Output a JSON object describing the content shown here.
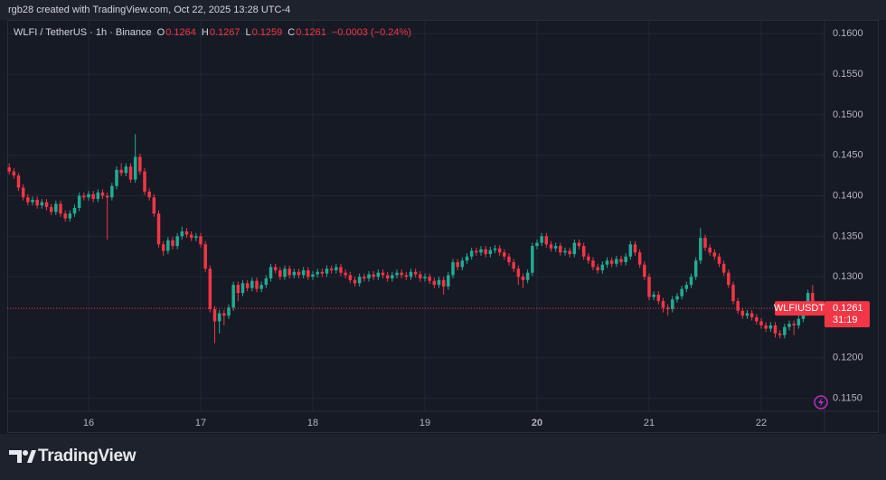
{
  "header": "rgb28 created with TradingView.com, Oct 22, 2025 13:28 UTC-4",
  "brand": "TradingView",
  "chart_data": {
    "type": "candlestick",
    "symbol": "WLFI / TetherUS · 1h · Binance",
    "ohlc_labels": [
      "O",
      "H",
      "L",
      "C"
    ],
    "change": "−0.0003 (−0.24%)",
    "price_label": "WLFIUSDT",
    "countdown": "31:19",
    "up_color": "#22ab94",
    "down_color": "#f23645",
    "grid": true,
    "xlim": [
      -0.42,
      174.55
    ],
    "xticks": [
      {
        "value": 17,
        "label": "16"
      },
      {
        "value": 41,
        "label": "17"
      },
      {
        "value": 65,
        "label": "18"
      },
      {
        "value": 89,
        "label": "19"
      },
      {
        "value": 113,
        "label": "20"
      },
      {
        "value": 137,
        "label": "21"
      },
      {
        "value": 161,
        "label": "22"
      }
    ],
    "ylim": [
      0.1134,
      0.1617
    ],
    "yticks": [
      {
        "value": 0.115,
        "label": "0.1150"
      },
      {
        "value": 0.12,
        "label": "0.1200"
      },
      {
        "value": 0.13,
        "label": "0.1300"
      },
      {
        "value": 0.135,
        "label": "0.1350"
      },
      {
        "value": 0.14,
        "label": "0.1400"
      },
      {
        "value": 0.145,
        "label": "0.1450"
      },
      {
        "value": 0.15,
        "label": "0.1500"
      },
      {
        "value": 0.155,
        "label": "0.1550"
      },
      {
        "value": 0.16,
        "label": "0.1600"
      }
    ],
    "series": [
      {
        "name": "WLFIUSDT",
        "open": [
          0.1435,
          0.143,
          0.1425,
          0.141,
          0.1398,
          0.1392,
          0.1395,
          0.1388,
          0.1392,
          0.1386,
          0.138,
          0.139,
          0.1378,
          0.1372,
          0.1378,
          0.1385,
          0.14,
          0.1398,
          0.1402,
          0.1396,
          0.1404,
          0.14,
          0.1398,
          0.1412,
          0.1432,
          0.1428,
          0.1436,
          0.142,
          0.1448,
          0.143,
          0.1405,
          0.1398,
          0.1378,
          0.134,
          0.1332,
          0.1345,
          0.1338,
          0.135,
          0.1356,
          0.1352,
          0.1348,
          0.135,
          0.134,
          0.131,
          0.126,
          0.1245,
          0.1255,
          0.1252,
          0.1262,
          0.129,
          0.128,
          0.1292,
          0.1286,
          0.1295,
          0.1285,
          0.129,
          0.1298,
          0.1312,
          0.1308,
          0.13,
          0.131,
          0.1302,
          0.1306,
          0.1302,
          0.1308,
          0.13,
          0.1303,
          0.1306,
          0.1304,
          0.131,
          0.1308,
          0.1312,
          0.1305,
          0.1302,
          0.1296,
          0.1292,
          0.13,
          0.1298,
          0.1303,
          0.13,
          0.1305,
          0.1302,
          0.1298,
          0.1302,
          0.1305,
          0.1302,
          0.13,
          0.1306,
          0.1303,
          0.1298,
          0.13,
          0.1295,
          0.129,
          0.1296,
          0.1288,
          0.1302,
          0.1318,
          0.1312,
          0.132,
          0.1325,
          0.1332,
          0.133,
          0.1334,
          0.1328,
          0.1333,
          0.1335,
          0.133,
          0.1325,
          0.1318,
          0.131,
          0.13,
          0.1296,
          0.1305,
          0.1338,
          0.1342,
          0.135,
          0.134,
          0.1335,
          0.1338,
          0.133,
          0.1332,
          0.1328,
          0.1342,
          0.1338,
          0.1325,
          0.132,
          0.1312,
          0.1308,
          0.1315,
          0.132,
          0.1316,
          0.1322,
          0.1318,
          0.1325,
          0.134,
          0.133,
          0.1315,
          0.13,
          0.1275,
          0.1278,
          0.127,
          0.1262,
          0.126,
          0.1272,
          0.1276,
          0.1285,
          0.129,
          0.13,
          0.132,
          0.1348,
          0.1336,
          0.133,
          0.1325,
          0.1316,
          0.1305,
          0.129,
          0.127,
          0.1258,
          0.1252,
          0.1255,
          0.125,
          0.1245,
          0.124,
          0.1236,
          0.124,
          0.123,
          0.1228,
          0.1238,
          0.1242,
          0.124,
          0.1248,
          0.1256,
          0.128,
          0.1264
        ],
        "high": [
          0.144,
          0.1434,
          0.1428,
          0.1414,
          0.1402,
          0.1399,
          0.1399,
          0.1396,
          0.1396,
          0.139,
          0.1394,
          0.1394,
          0.1382,
          0.1382,
          0.1389,
          0.1404,
          0.1404,
          0.1406,
          0.1406,
          0.1408,
          0.1408,
          0.1404,
          0.1416,
          0.1436,
          0.144,
          0.144,
          0.144,
          0.1476,
          0.1452,
          0.1434,
          0.1409,
          0.1402,
          0.1382,
          0.1344,
          0.1349,
          0.1349,
          0.1354,
          0.1362,
          0.136,
          0.1356,
          0.1354,
          0.1354,
          0.1344,
          0.1314,
          0.1264,
          0.1259,
          0.1259,
          0.1266,
          0.1294,
          0.1294,
          0.1296,
          0.1296,
          0.1299,
          0.1299,
          0.1294,
          0.1302,
          0.1316,
          0.1316,
          0.1312,
          0.1314,
          0.1314,
          0.131,
          0.131,
          0.1312,
          0.1312,
          0.1307,
          0.131,
          0.131,
          0.1314,
          0.1314,
          0.1316,
          0.1316,
          0.1309,
          0.1306,
          0.13,
          0.1304,
          0.1304,
          0.1307,
          0.1307,
          0.1309,
          0.1309,
          0.1306,
          0.1306,
          0.1309,
          0.1309,
          0.1306,
          0.131,
          0.131,
          0.1307,
          0.1304,
          0.1304,
          0.1299,
          0.13,
          0.13,
          0.1306,
          0.1322,
          0.1322,
          0.1324,
          0.1329,
          0.1336,
          0.1336,
          0.1338,
          0.1338,
          0.1337,
          0.1339,
          0.1339,
          0.1334,
          0.1329,
          0.1322,
          0.1314,
          0.1304,
          0.1309,
          0.1342,
          0.1346,
          0.1354,
          0.1354,
          0.1344,
          0.1342,
          0.1342,
          0.1336,
          0.1336,
          0.1346,
          0.1346,
          0.1342,
          0.1329,
          0.1324,
          0.1316,
          0.1319,
          0.1324,
          0.1324,
          0.1326,
          0.1326,
          0.1329,
          0.1344,
          0.1344,
          0.1334,
          0.1319,
          0.1304,
          0.1282,
          0.1282,
          0.1274,
          0.1266,
          0.1276,
          0.128,
          0.1289,
          0.1294,
          0.1304,
          0.1324,
          0.136,
          0.1352,
          0.134,
          0.1334,
          0.1329,
          0.132,
          0.1309,
          0.1294,
          0.1274,
          0.1262,
          0.1259,
          0.1259,
          0.1254,
          0.1249,
          0.1244,
          0.1244,
          0.1244,
          0.1234,
          0.1242,
          0.1246,
          0.1246,
          0.1252,
          0.126,
          0.1284,
          0.129,
          0.1267
        ],
        "low": [
          0.1426,
          0.1421,
          0.1406,
          0.1394,
          0.1388,
          0.1388,
          0.1384,
          0.1384,
          0.1382,
          0.1376,
          0.1376,
          0.1374,
          0.1368,
          0.1368,
          0.1374,
          0.1381,
          0.1394,
          0.1394,
          0.1392,
          0.1392,
          0.1396,
          0.1346,
          0.1394,
          0.1408,
          0.1424,
          0.1424,
          0.1416,
          0.1416,
          0.1426,
          0.1401,
          0.1394,
          0.1374,
          0.1336,
          0.1326,
          0.1328,
          0.1334,
          0.1334,
          0.1346,
          0.1348,
          0.1344,
          0.1344,
          0.1336,
          0.1306,
          0.1256,
          0.1218,
          0.123,
          0.124,
          0.1248,
          0.1258,
          0.127,
          0.1276,
          0.1282,
          0.1282,
          0.1281,
          0.1281,
          0.1286,
          0.1294,
          0.1304,
          0.1296,
          0.1296,
          0.1298,
          0.1298,
          0.1298,
          0.1298,
          0.1296,
          0.1296,
          0.1299,
          0.13,
          0.13,
          0.1304,
          0.1304,
          0.1301,
          0.1298,
          0.1292,
          0.1288,
          0.1288,
          0.1294,
          0.1294,
          0.1296,
          0.1296,
          0.1298,
          0.1294,
          0.1294,
          0.1298,
          0.1298,
          0.1296,
          0.1296,
          0.1299,
          0.1294,
          0.1294,
          0.1291,
          0.1286,
          0.1286,
          0.1278,
          0.1284,
          0.1298,
          0.1308,
          0.1308,
          0.1316,
          0.1321,
          0.1326,
          0.1326,
          0.1324,
          0.1324,
          0.1329,
          0.1326,
          0.1321,
          0.1314,
          0.1306,
          0.129,
          0.1286,
          0.1292,
          0.1301,
          0.1334,
          0.1338,
          0.1336,
          0.1331,
          0.1331,
          0.1326,
          0.1326,
          0.1324,
          0.1324,
          0.1334,
          0.1321,
          0.1316,
          0.1308,
          0.1304,
          0.1304,
          0.1311,
          0.1312,
          0.1312,
          0.1314,
          0.1314,
          0.1321,
          0.1326,
          0.1311,
          0.1296,
          0.1271,
          0.1271,
          0.1266,
          0.1256,
          0.1252,
          0.1256,
          0.1268,
          0.1272,
          0.1281,
          0.1286,
          0.1296,
          0.1316,
          0.1332,
          0.1326,
          0.1321,
          0.1312,
          0.1301,
          0.1286,
          0.1266,
          0.1254,
          0.1248,
          0.1248,
          0.1246,
          0.1241,
          0.1236,
          0.1232,
          0.1232,
          0.1225,
          0.1224,
          0.1224,
          0.1234,
          0.1228,
          0.1236,
          0.1244,
          0.1252,
          0.1262,
          0.1259
        ],
        "close": [
          0.143,
          0.1425,
          0.141,
          0.1398,
          0.1392,
          0.1395,
          0.1388,
          0.1392,
          0.1386,
          0.138,
          0.139,
          0.1378,
          0.1372,
          0.1378,
          0.1385,
          0.14,
          0.1398,
          0.1402,
          0.1396,
          0.1404,
          0.14,
          0.1398,
          0.1412,
          0.1432,
          0.1428,
          0.1436,
          0.142,
          0.1448,
          0.143,
          0.1405,
          0.1398,
          0.1378,
          0.134,
          0.1332,
          0.1345,
          0.1338,
          0.135,
          0.1356,
          0.1352,
          0.1348,
          0.135,
          0.134,
          0.131,
          0.126,
          0.1245,
          0.1255,
          0.1252,
          0.1262,
          0.129,
          0.128,
          0.1292,
          0.1286,
          0.1295,
          0.1285,
          0.129,
          0.1298,
          0.1312,
          0.1308,
          0.13,
          0.131,
          0.1302,
          0.1306,
          0.1302,
          0.1308,
          0.13,
          0.1303,
          0.1306,
          0.1304,
          0.131,
          0.1308,
          0.1312,
          0.1305,
          0.1302,
          0.1296,
          0.1292,
          0.13,
          0.1298,
          0.1303,
          0.13,
          0.1305,
          0.1302,
          0.1298,
          0.1302,
          0.1305,
          0.1302,
          0.13,
          0.1306,
          0.1303,
          0.1298,
          0.13,
          0.1295,
          0.129,
          0.1296,
          0.1288,
          0.1302,
          0.1318,
          0.1312,
          0.132,
          0.1325,
          0.1332,
          0.133,
          0.1334,
          0.1328,
          0.1333,
          0.1335,
          0.133,
          0.1325,
          0.1318,
          0.131,
          0.13,
          0.1296,
          0.1305,
          0.1338,
          0.1342,
          0.135,
          0.134,
          0.1335,
          0.1338,
          0.133,
          0.1332,
          0.1328,
          0.1342,
          0.1338,
          0.1325,
          0.132,
          0.1312,
          0.1308,
          0.1315,
          0.132,
          0.1316,
          0.1322,
          0.1318,
          0.1325,
          0.134,
          0.133,
          0.1315,
          0.13,
          0.1275,
          0.1278,
          0.127,
          0.1262,
          0.126,
          0.1272,
          0.1276,
          0.1285,
          0.129,
          0.13,
          0.132,
          0.1348,
          0.1336,
          0.133,
          0.1325,
          0.1316,
          0.1305,
          0.129,
          0.127,
          0.1258,
          0.1252,
          0.1255,
          0.125,
          0.1245,
          0.124,
          0.1236,
          0.124,
          0.123,
          0.1228,
          0.1238,
          0.1242,
          0.124,
          0.1248,
          0.1256,
          0.128,
          0.1266,
          0.1261
        ]
      }
    ]
  }
}
